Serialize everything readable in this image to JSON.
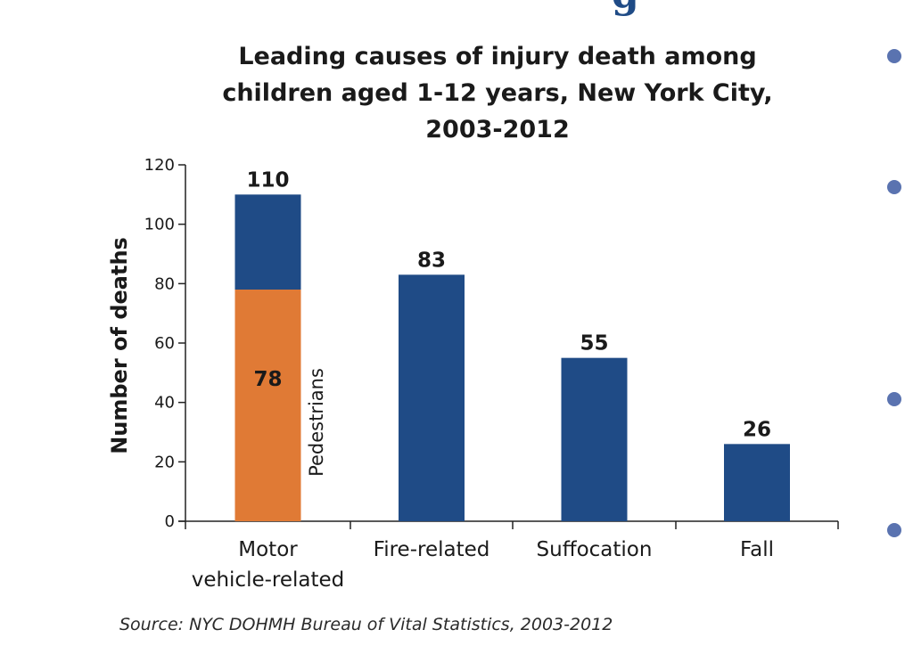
{
  "colors": {
    "bar_primary": "#1f4b86",
    "bar_highlight": "#e07a35",
    "bullet": "#5a73b0",
    "heading_fragment": "#1f4b86"
  },
  "heading_fragment": "g",
  "chart_data": {
    "type": "bar",
    "title_lines": [
      "Leading causes of injury death among",
      "children aged 1-12 years, New York City,",
      "2003-2012"
    ],
    "ylabel": "Number of deaths",
    "xlabel": "",
    "ylim": [
      0,
      120
    ],
    "yticks": [
      0,
      20,
      40,
      60,
      80,
      100,
      120
    ],
    "categories": [
      [
        "Motor",
        "vehicle-related"
      ],
      [
        "Fire-related"
      ],
      [
        "Suffocation"
      ],
      [
        "Fall"
      ]
    ],
    "values": [
      110,
      83,
      55,
      26
    ],
    "value_labels": [
      "110",
      "83",
      "55",
      "26"
    ],
    "stacked_segment": {
      "category_index": 0,
      "value": 78,
      "value_label": "78",
      "annotation": "Pedestrians"
    },
    "grid": false,
    "legend": "none",
    "source": "Source: NYC DOHMH Bureau of Vital Statistics, 2003-2012"
  }
}
